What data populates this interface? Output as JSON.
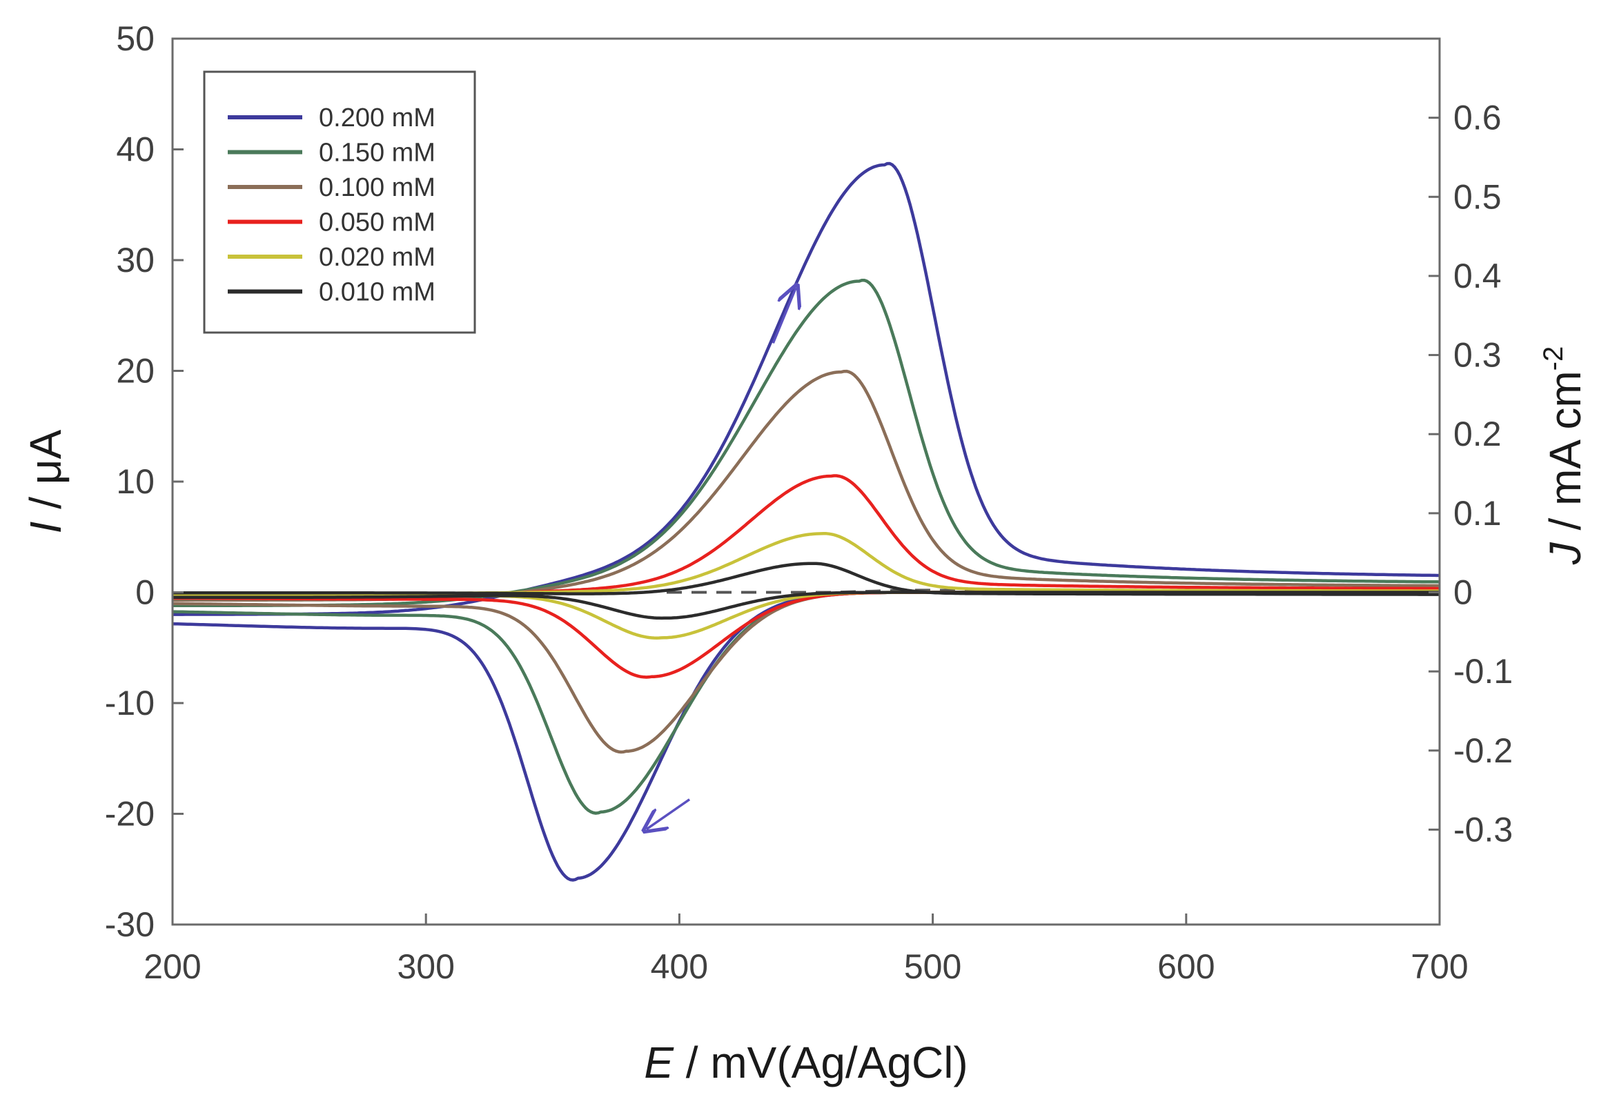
{
  "chart_data": {
    "type": "line",
    "title": "",
    "xlabel": {
      "italic": "E",
      "rest": " / mV(Ag/AgCl)"
    },
    "ylabel": {
      "italic": "I",
      "rest": " / μA"
    },
    "y2label": {
      "italic": "J",
      "rest": " / mA cm",
      "sup": "-2"
    },
    "xlim": [
      200,
      700
    ],
    "ylim": [
      -30,
      50
    ],
    "y2lim": [
      -0.42,
      0.7
    ],
    "xticks": [
      200,
      300,
      400,
      500,
      600,
      700
    ],
    "xtick_labels": [
      "200",
      "300",
      "400",
      "500",
      "600",
      "700"
    ],
    "yticks": [
      -30,
      -20,
      -10,
      0,
      10,
      20,
      30,
      40,
      50
    ],
    "ytick_labels": [
      "-30",
      "-20",
      "-10",
      "0",
      "10",
      "20",
      "30",
      "40",
      "50"
    ],
    "y2ticks": [
      -0.3,
      -0.2,
      -0.1,
      0,
      0.1,
      0.2,
      0.3,
      0.4,
      0.5,
      0.6
    ],
    "y2tick_labels": [
      "-0.3",
      "-0.2",
      "-0.1",
      "0",
      "0.1",
      "0.2",
      "0.3",
      "0.4",
      "0.5",
      "0.6"
    ],
    "legend_position": "top-left",
    "baseline": {
      "name": "background",
      "style": "dashed",
      "color": "#555555",
      "x": [
        395,
        460,
        490,
        700
      ],
      "y": [
        0,
        0,
        0.2,
        0
      ]
    },
    "series": [
      {
        "name": "0.200 mM",
        "color": "#3d3a9c",
        "anodic": {
          "start": -2.0,
          "end": 1.3,
          "peak_x": 481,
          "peak_y": 37.3,
          "width_left": 60,
          "width_right": 27,
          "tail_amp": 3.5,
          "tail_decay": 80,
          "onset": 330
        },
        "cathodic": {
          "start": 0.0,
          "end": -1.9,
          "peak_x": 360,
          "peak_y": -25.5,
          "width_left": 27,
          "width_right": 45,
          "tail_amp": -3.0,
          "tail_decay": 140
        }
      },
      {
        "name": "0.150 mM",
        "color": "#4a7a5a",
        "anodic": {
          "start": -1.2,
          "end": 0.8,
          "peak_x": 471,
          "peak_y": 27.3,
          "width_left": 58,
          "width_right": 27,
          "tail_amp": 2.5,
          "tail_decay": 80,
          "onset": 330
        },
        "cathodic": {
          "start": 0.0,
          "end": -1.1,
          "peak_x": 369,
          "peak_y": -19.7,
          "width_left": 27,
          "width_right": 43,
          "tail_amp": -2.2,
          "tail_decay": 140
        }
      },
      {
        "name": "0.100 mM",
        "color": "#8b6e58",
        "anodic": {
          "start": -0.7,
          "end": 0.5,
          "peak_x": 464,
          "peak_y": 19.4,
          "width_left": 55,
          "width_right": 27,
          "tail_amp": 1.8,
          "tail_decay": 80,
          "onset": 335
        },
        "cathodic": {
          "start": 0.0,
          "end": -0.6,
          "peak_x": 379,
          "peak_y": -14.3,
          "width_left": 28,
          "width_right": 40,
          "tail_amp": -1.5,
          "tail_decay": 140
        }
      },
      {
        "name": "0.050 mM",
        "color": "#e8211e",
        "anodic": {
          "start": -0.3,
          "end": 0.3,
          "peak_x": 460,
          "peak_y": 10.2,
          "width_left": 45,
          "width_right": 27,
          "tail_amp": 0.9,
          "tail_decay": 80,
          "onset": 340
        },
        "cathodic": {
          "start": 0.0,
          "end": -0.3,
          "peak_x": 389,
          "peak_y": -7.6,
          "width_left": 30,
          "width_right": 38,
          "tail_amp": -0.8,
          "tail_decay": 140
        }
      },
      {
        "name": "0.020 mM",
        "color": "#c8c23a",
        "anodic": {
          "start": -0.1,
          "end": 0.1,
          "peak_x": 456,
          "peak_y": 5.2,
          "width_left": 42,
          "width_right": 26,
          "tail_amp": 0.4,
          "tail_decay": 80,
          "onset": 345
        },
        "cathodic": {
          "start": 0.0,
          "end": -0.1,
          "peak_x": 393,
          "peak_y": -4.1,
          "width_left": 30,
          "width_right": 36,
          "tail_amp": -0.4,
          "tail_decay": 140
        }
      },
      {
        "name": "0.010 mM",
        "color": "#2b2b2b",
        "anodic": {
          "start": -0.05,
          "end": -0.2,
          "peak_x": 452,
          "peak_y": 2.8,
          "width_left": 40,
          "width_right": 25,
          "tail_amp": 0.2,
          "tail_decay": 80,
          "onset": 350
        },
        "cathodic": {
          "start": 0.0,
          "end": -0.4,
          "peak_x": 395,
          "peak_y": -2.3,
          "width_left": 30,
          "width_right": 34,
          "tail_amp": -0.2,
          "tail_decay": 140
        }
      }
    ],
    "annotations": [
      {
        "name": "scan-direction-arrow-up",
        "color": "#5a50c0",
        "from": [
          437,
          22.5
        ],
        "to": [
          446,
          27.5
        ]
      },
      {
        "name": "scan-direction-arrow-down",
        "color": "#5a50c0",
        "from": [
          404,
          -18.7
        ],
        "to": [
          387,
          -21.4
        ]
      }
    ]
  }
}
